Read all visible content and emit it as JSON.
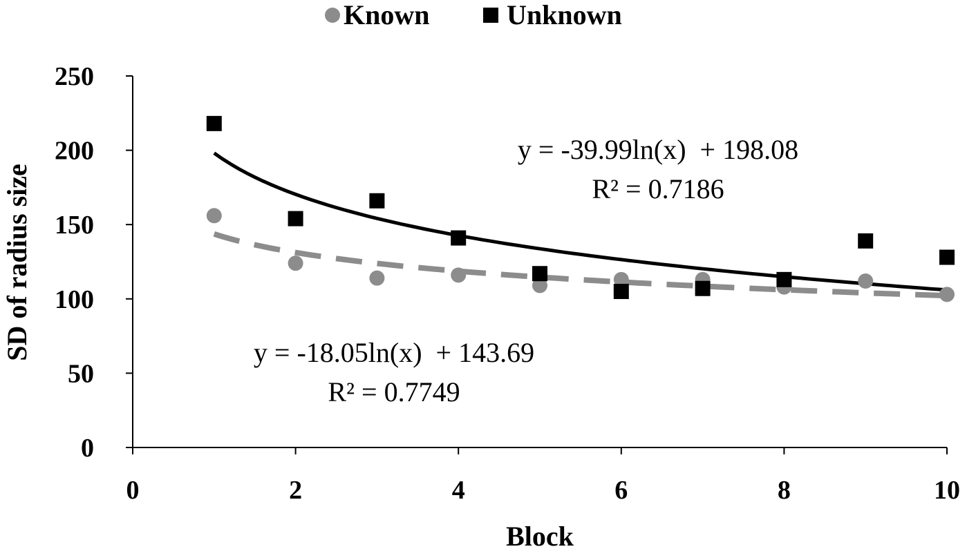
{
  "chart_data": {
    "type": "scatter",
    "xlabel": "Block",
    "ylabel": "SD of radius size",
    "xlim": [
      0,
      10
    ],
    "ylim": [
      0,
      250
    ],
    "xticks": [
      "0",
      "2",
      "4",
      "6",
      "8",
      "10"
    ],
    "yticks": [
      "0",
      "50",
      "100",
      "150",
      "200",
      "250"
    ],
    "grid": false,
    "legend_position": "top-center",
    "series": [
      {
        "name": "Known",
        "marker": "circle",
        "color": "#8c8c8c",
        "x": [
          1,
          2,
          3,
          4,
          5,
          6,
          7,
          8,
          9,
          10
        ],
        "y": [
          156,
          124,
          114,
          116,
          109,
          113,
          113,
          108,
          112,
          103
        ],
        "trendline": {
          "type": "log",
          "a": -18.05,
          "b": 143.69,
          "style": "dashed",
          "color": "#8c8c8c"
        },
        "equation": "y = -18.05ln(x)  + 143.69",
        "r2": "R² = 0.7749"
      },
      {
        "name": "Unknown",
        "marker": "square",
        "color": "#000000",
        "x": [
          1,
          2,
          3,
          4,
          5,
          6,
          7,
          8,
          9,
          10
        ],
        "y": [
          218,
          154,
          166,
          141,
          117,
          105,
          107,
          113,
          139,
          128
        ],
        "trendline": {
          "type": "log",
          "a": -39.99,
          "b": 198.08,
          "style": "solid",
          "color": "#000000"
        },
        "equation": "y = -39.99ln(x)  + 198.08",
        "r2": "R² = 0.7186"
      }
    ]
  }
}
